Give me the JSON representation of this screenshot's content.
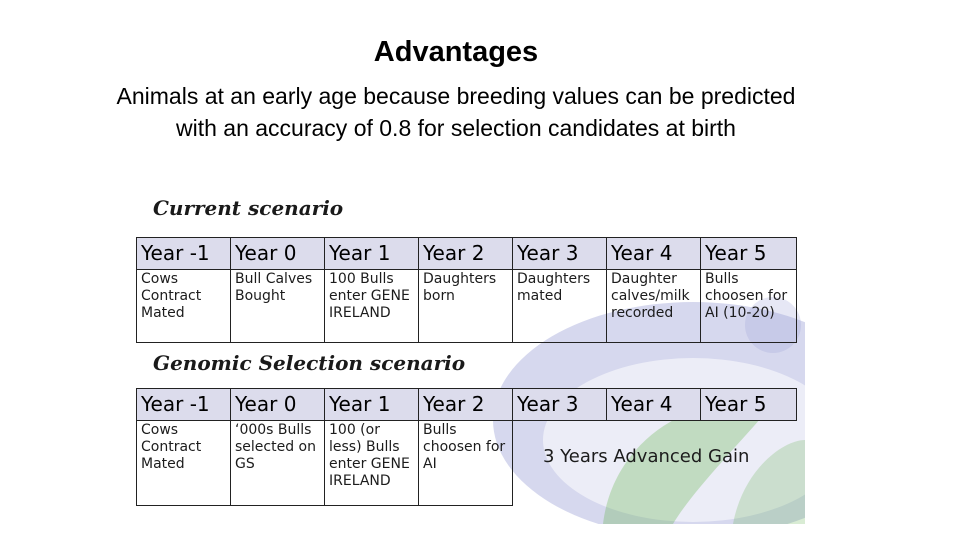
{
  "slide": {
    "title": "Advantages",
    "subtitle": "Animals at an early age because breeding values can be predicted with an accuracy of 0.8 for selection candidates at birth"
  },
  "colors": {
    "header_fill": "#dcdcec",
    "watermark_blue": "#6d73c2",
    "watermark_green": "#66b552"
  },
  "current": {
    "label": "Current scenario",
    "headers": [
      "Year -1",
      "Year 0",
      "Year 1",
      "Year 2",
      "Year 3",
      "Year 4",
      "Year 5"
    ],
    "cells": [
      "Cows Contract Mated",
      "Bull Calves Bought",
      "100 Bulls enter GENE IRELAND",
      "Daughters born",
      "Daughters mated",
      "Daughter calves/milk recorded",
      "Bulls choosen for AI (10-20)"
    ]
  },
  "genomic": {
    "label": "Genomic Selection scenario",
    "headers": [
      "Year -1",
      "Year 0",
      "Year 1",
      "Year 2",
      "Year 3",
      "Year 4",
      "Year 5"
    ],
    "cells": [
      "Cows Contract Mated",
      "‘000s Bulls selected on GS",
      "100 (or less) Bulls enter GENE IRELAND",
      "Bulls choosen for AI"
    ],
    "gain": "3 Years Advanced Gain"
  }
}
